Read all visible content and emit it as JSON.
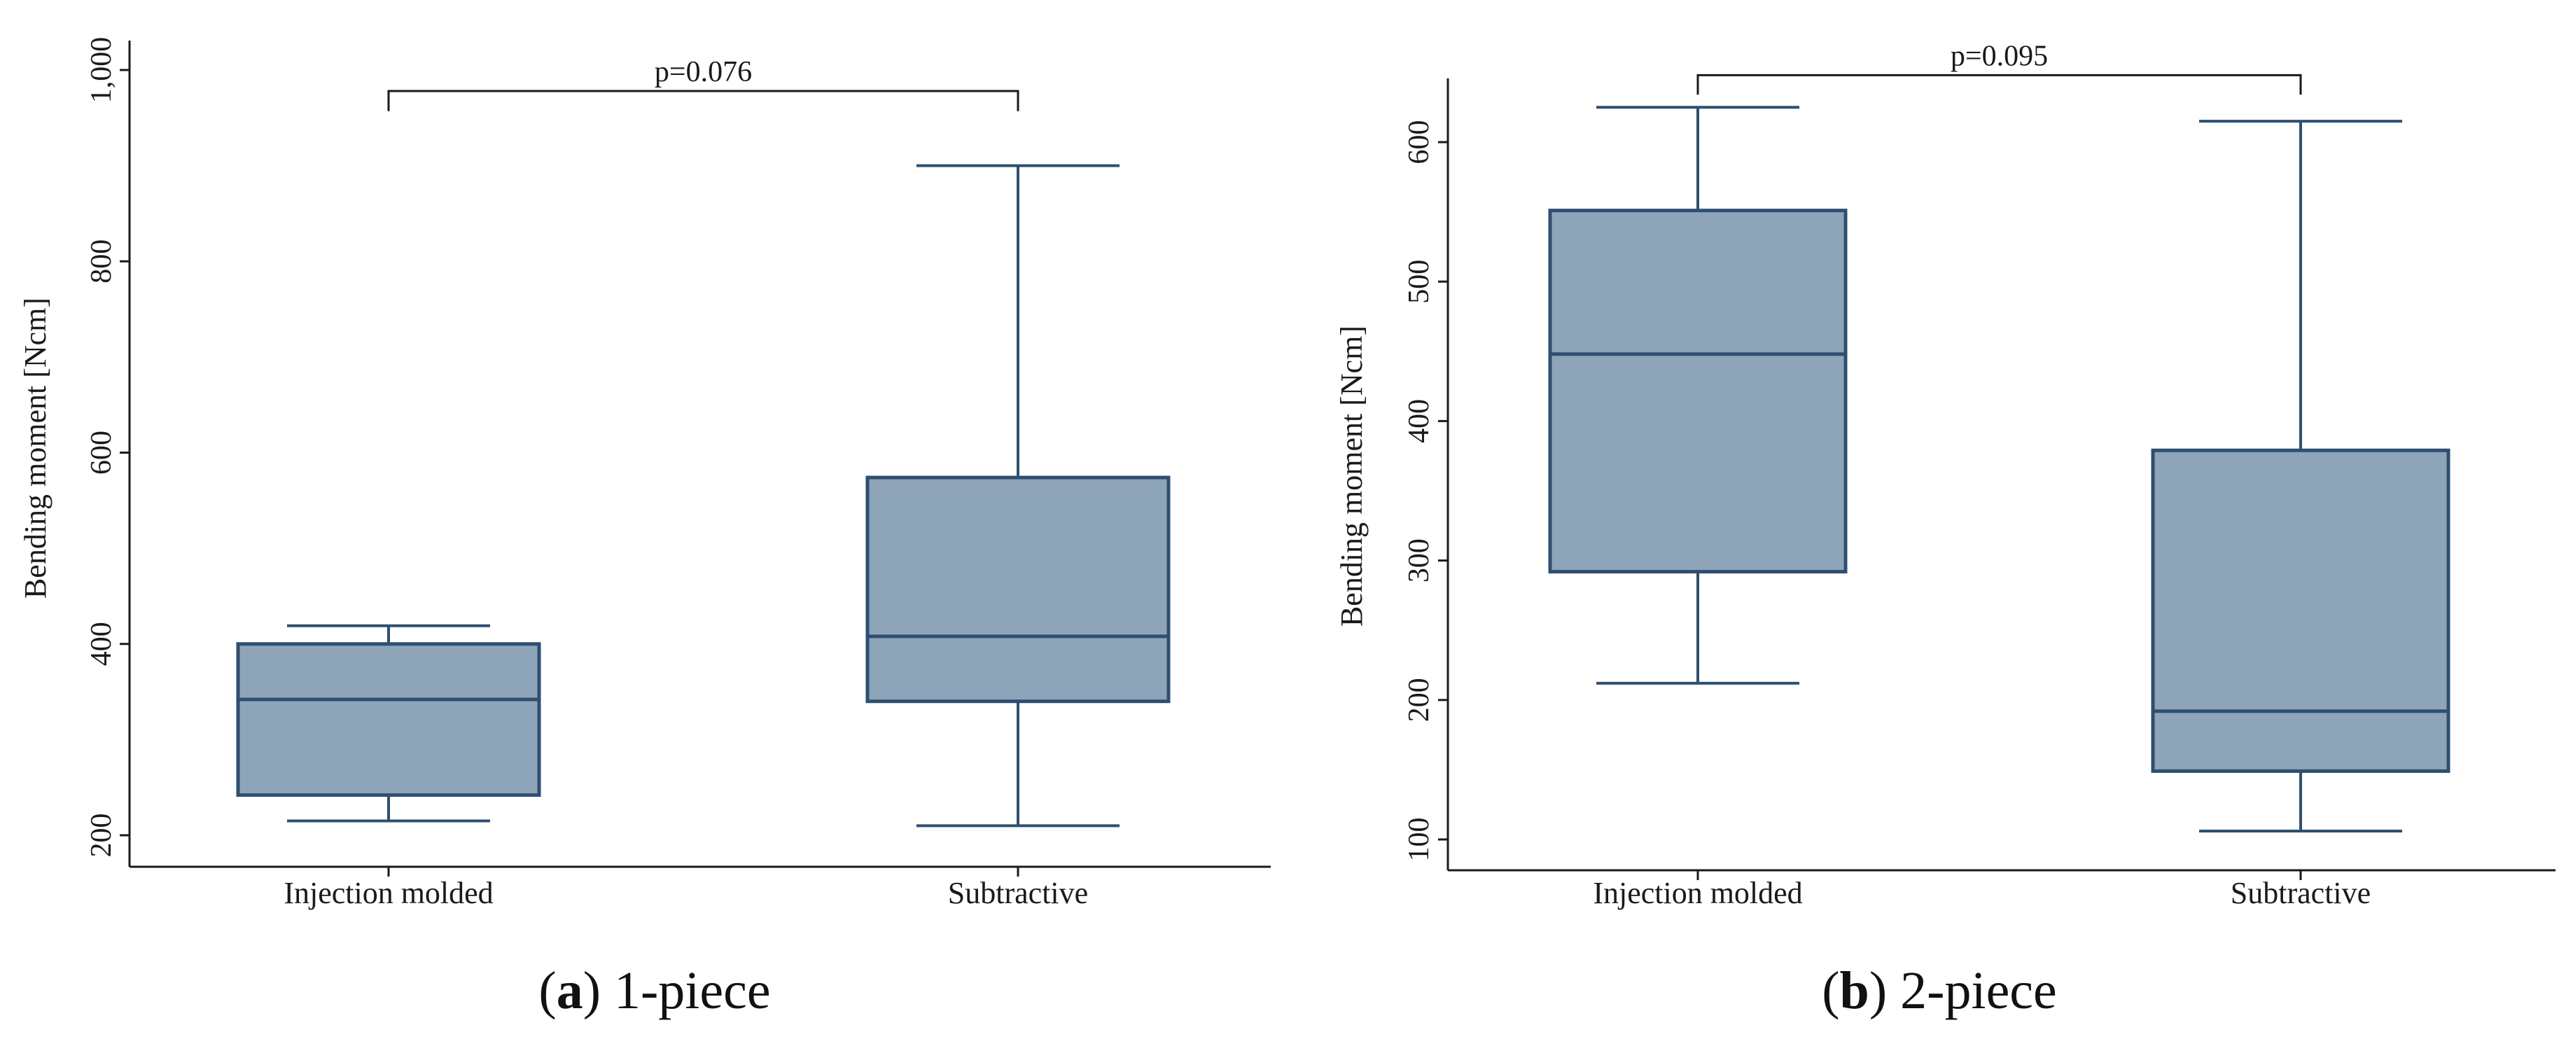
{
  "chart_data": [
    {
      "type": "box",
      "caption_letter": "(a)",
      "caption_rest": " 1-piece",
      "ylabel": "Bending moment [Ncm]",
      "ylim": [
        180,
        1020
      ],
      "yticks": [
        200,
        400,
        600,
        800
      ],
      "ytick_labels": [
        "200",
        "400",
        "600",
        "800",
        "1,000"
      ],
      "ytick_values_all": [
        200,
        400,
        600,
        800,
        1000
      ],
      "categories": [
        "Injection molded",
        "Subtractive"
      ],
      "boxes": [
        {
          "category": "Injection molded",
          "whisker_low": 215,
          "q1": 242,
          "median": 342,
          "q3": 400,
          "whisker_high": 419
        },
        {
          "category": "Subtractive",
          "whisker_low": 210,
          "q1": 340,
          "median": 408,
          "q3": 574,
          "whisker_high": 900
        }
      ],
      "comparison": {
        "label": "p=0.076",
        "level": 978,
        "tick_bottom": 957
      }
    },
    {
      "type": "box",
      "caption_letter": "(b)",
      "caption_rest": " 2-piece",
      "ylabel": "Bending moment [Ncm]",
      "ylim": [
        80,
        650
      ],
      "yticks": [
        100,
        200,
        300,
        400,
        500,
        600
      ],
      "ytick_labels": [
        "100",
        "200",
        "300",
        "400",
        "500",
        "600"
      ],
      "ytick_values_all": [
        100,
        200,
        300,
        400,
        500,
        600
      ],
      "categories": [
        "Injection molded",
        "Subtractive"
      ],
      "boxes": [
        {
          "category": "Injection molded",
          "whisker_low": 212,
          "q1": 292,
          "median": 448,
          "q3": 551,
          "whisker_high": 625
        },
        {
          "category": "Subtractive",
          "whisker_low": 106,
          "q1": 149,
          "median": 192,
          "q3": 379,
          "whisker_high": 615
        }
      ],
      "comparison": {
        "label": "p=0.095",
        "level": 648,
        "tick_bottom": 634
      }
    }
  ],
  "colors": {
    "box_fill": "#8ea4b9",
    "box_stroke": "#2e4f70",
    "axis": "#1a1a1a"
  }
}
